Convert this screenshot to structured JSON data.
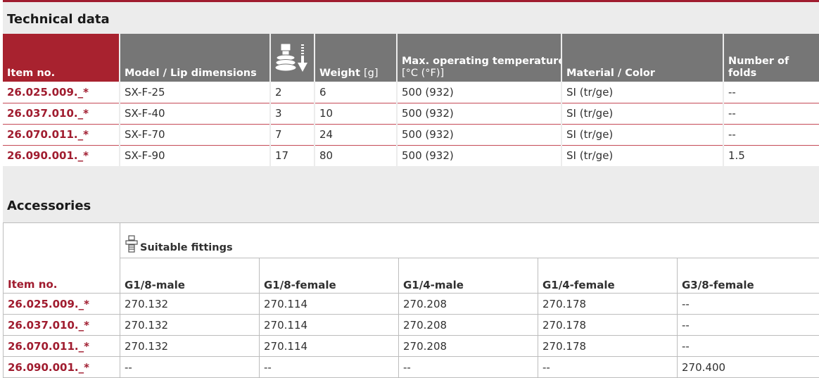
{
  "technical": {
    "title": "Technical data",
    "headers": {
      "item": "Item no.",
      "model": "Model / Lip dimensions",
      "weight": "Weight",
      "weight_unit": "[g]",
      "temp": "Max. operating temperature",
      "temp_unit": "[°C (°F)]",
      "material": "Material / Color",
      "folds": "Number of folds"
    },
    "rows": [
      {
        "item": "26.025.009._*",
        "model": "SX-F-25",
        "icon_val": "2",
        "weight": "6",
        "temp": "500 (932)",
        "material": "SI (tr/ge)",
        "folds": "--"
      },
      {
        "item": "26.037.010._*",
        "model": "SX-F-40",
        "icon_val": "3",
        "weight": "10",
        "temp": "500 (932)",
        "material": "SI (tr/ge)",
        "folds": "--"
      },
      {
        "item": "26.070.011._*",
        "model": "SX-F-70",
        "icon_val": "7",
        "weight": "24",
        "temp": "500 (932)",
        "material": "SI (tr/ge)",
        "folds": "--"
      },
      {
        "item": "26.090.001._*",
        "model": "SX-F-90",
        "icon_val": "17",
        "weight": "80",
        "temp": "500 (932)",
        "material": "SI (tr/ge)",
        "folds": "1.5"
      }
    ]
  },
  "accessories": {
    "title": "Accessories",
    "item_header": "Item no.",
    "fittings_header": "Suitable fittings",
    "columns": [
      "G1/8-male",
      "G1/8-female",
      "G1/4-male",
      "G1/4-female",
      "G3/8-female"
    ],
    "rows": [
      {
        "item": "26.025.009._*",
        "values": [
          "270.132",
          "270.114",
          "270.208",
          "270.178",
          "--"
        ]
      },
      {
        "item": "26.037.010._*",
        "values": [
          "270.132",
          "270.114",
          "270.208",
          "270.178",
          "--"
        ]
      },
      {
        "item": "26.070.011._*",
        "values": [
          "270.132",
          "270.114",
          "270.208",
          "270.178",
          "--"
        ]
      },
      {
        "item": "26.090.001._*",
        "values": [
          "--",
          "--",
          "--",
          "--",
          "270.400"
        ]
      }
    ]
  },
  "colors": {
    "accent": "#a8222f",
    "header_gray": "#767676",
    "band": "#ececec"
  },
  "icons": {
    "suction_cup_header": "suction-cup-stroke-icon",
    "fitting": "fitting-icon"
  }
}
